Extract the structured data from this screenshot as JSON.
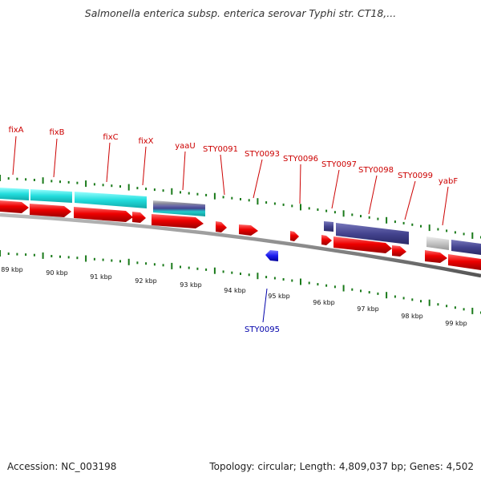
{
  "header": {
    "title": "Salmonella enterica subsp. enterica serovar Typhi str. CT18,..."
  },
  "footer": {
    "accession": "Accession: NC_003198",
    "summary": "Topology: circular; Length: 4,809,037 bp; Genes: 4,502"
  },
  "colors": {
    "label_forward": "#cc0000",
    "label_reverse": "#0000aa",
    "cds_forward": "#ee0000",
    "cds_reverse": "#1a1aee",
    "feature_cyan": "#22dddd",
    "feature_navy": "#44448f",
    "feature_grey": "#c4c4c4",
    "backbone": "#8c8c8c",
    "tick": "#1a7a1a"
  },
  "ruler": {
    "labels": [
      "89 kbp",
      "90 kbp",
      "91 kbp",
      "92 kbp",
      "93 kbp",
      "94 kbp",
      "95 kbp",
      "96 kbp",
      "97 kbp",
      "98 kbp",
      "99 kbp"
    ]
  },
  "forward_labels": [
    {
      "id": "fixA",
      "text": "fixA"
    },
    {
      "id": "fixB",
      "text": "fixB"
    },
    {
      "id": "fixC",
      "text": "fixC"
    },
    {
      "id": "fixX",
      "text": "fixX"
    },
    {
      "id": "yaaU",
      "text": "yaaU"
    },
    {
      "id": "STY0091",
      "text": "STY0091"
    },
    {
      "id": "STY0093",
      "text": "STY0093"
    },
    {
      "id": "STY0096",
      "text": "STY0096"
    },
    {
      "id": "STY0097",
      "text": "STY0097"
    },
    {
      "id": "STY0098",
      "text": "STY0098"
    },
    {
      "id": "STY0099",
      "text": "STY0099"
    },
    {
      "id": "yabF",
      "text": "yabF"
    }
  ],
  "reverse_labels": [
    {
      "id": "STY0095",
      "text": "STY0095"
    }
  ]
}
